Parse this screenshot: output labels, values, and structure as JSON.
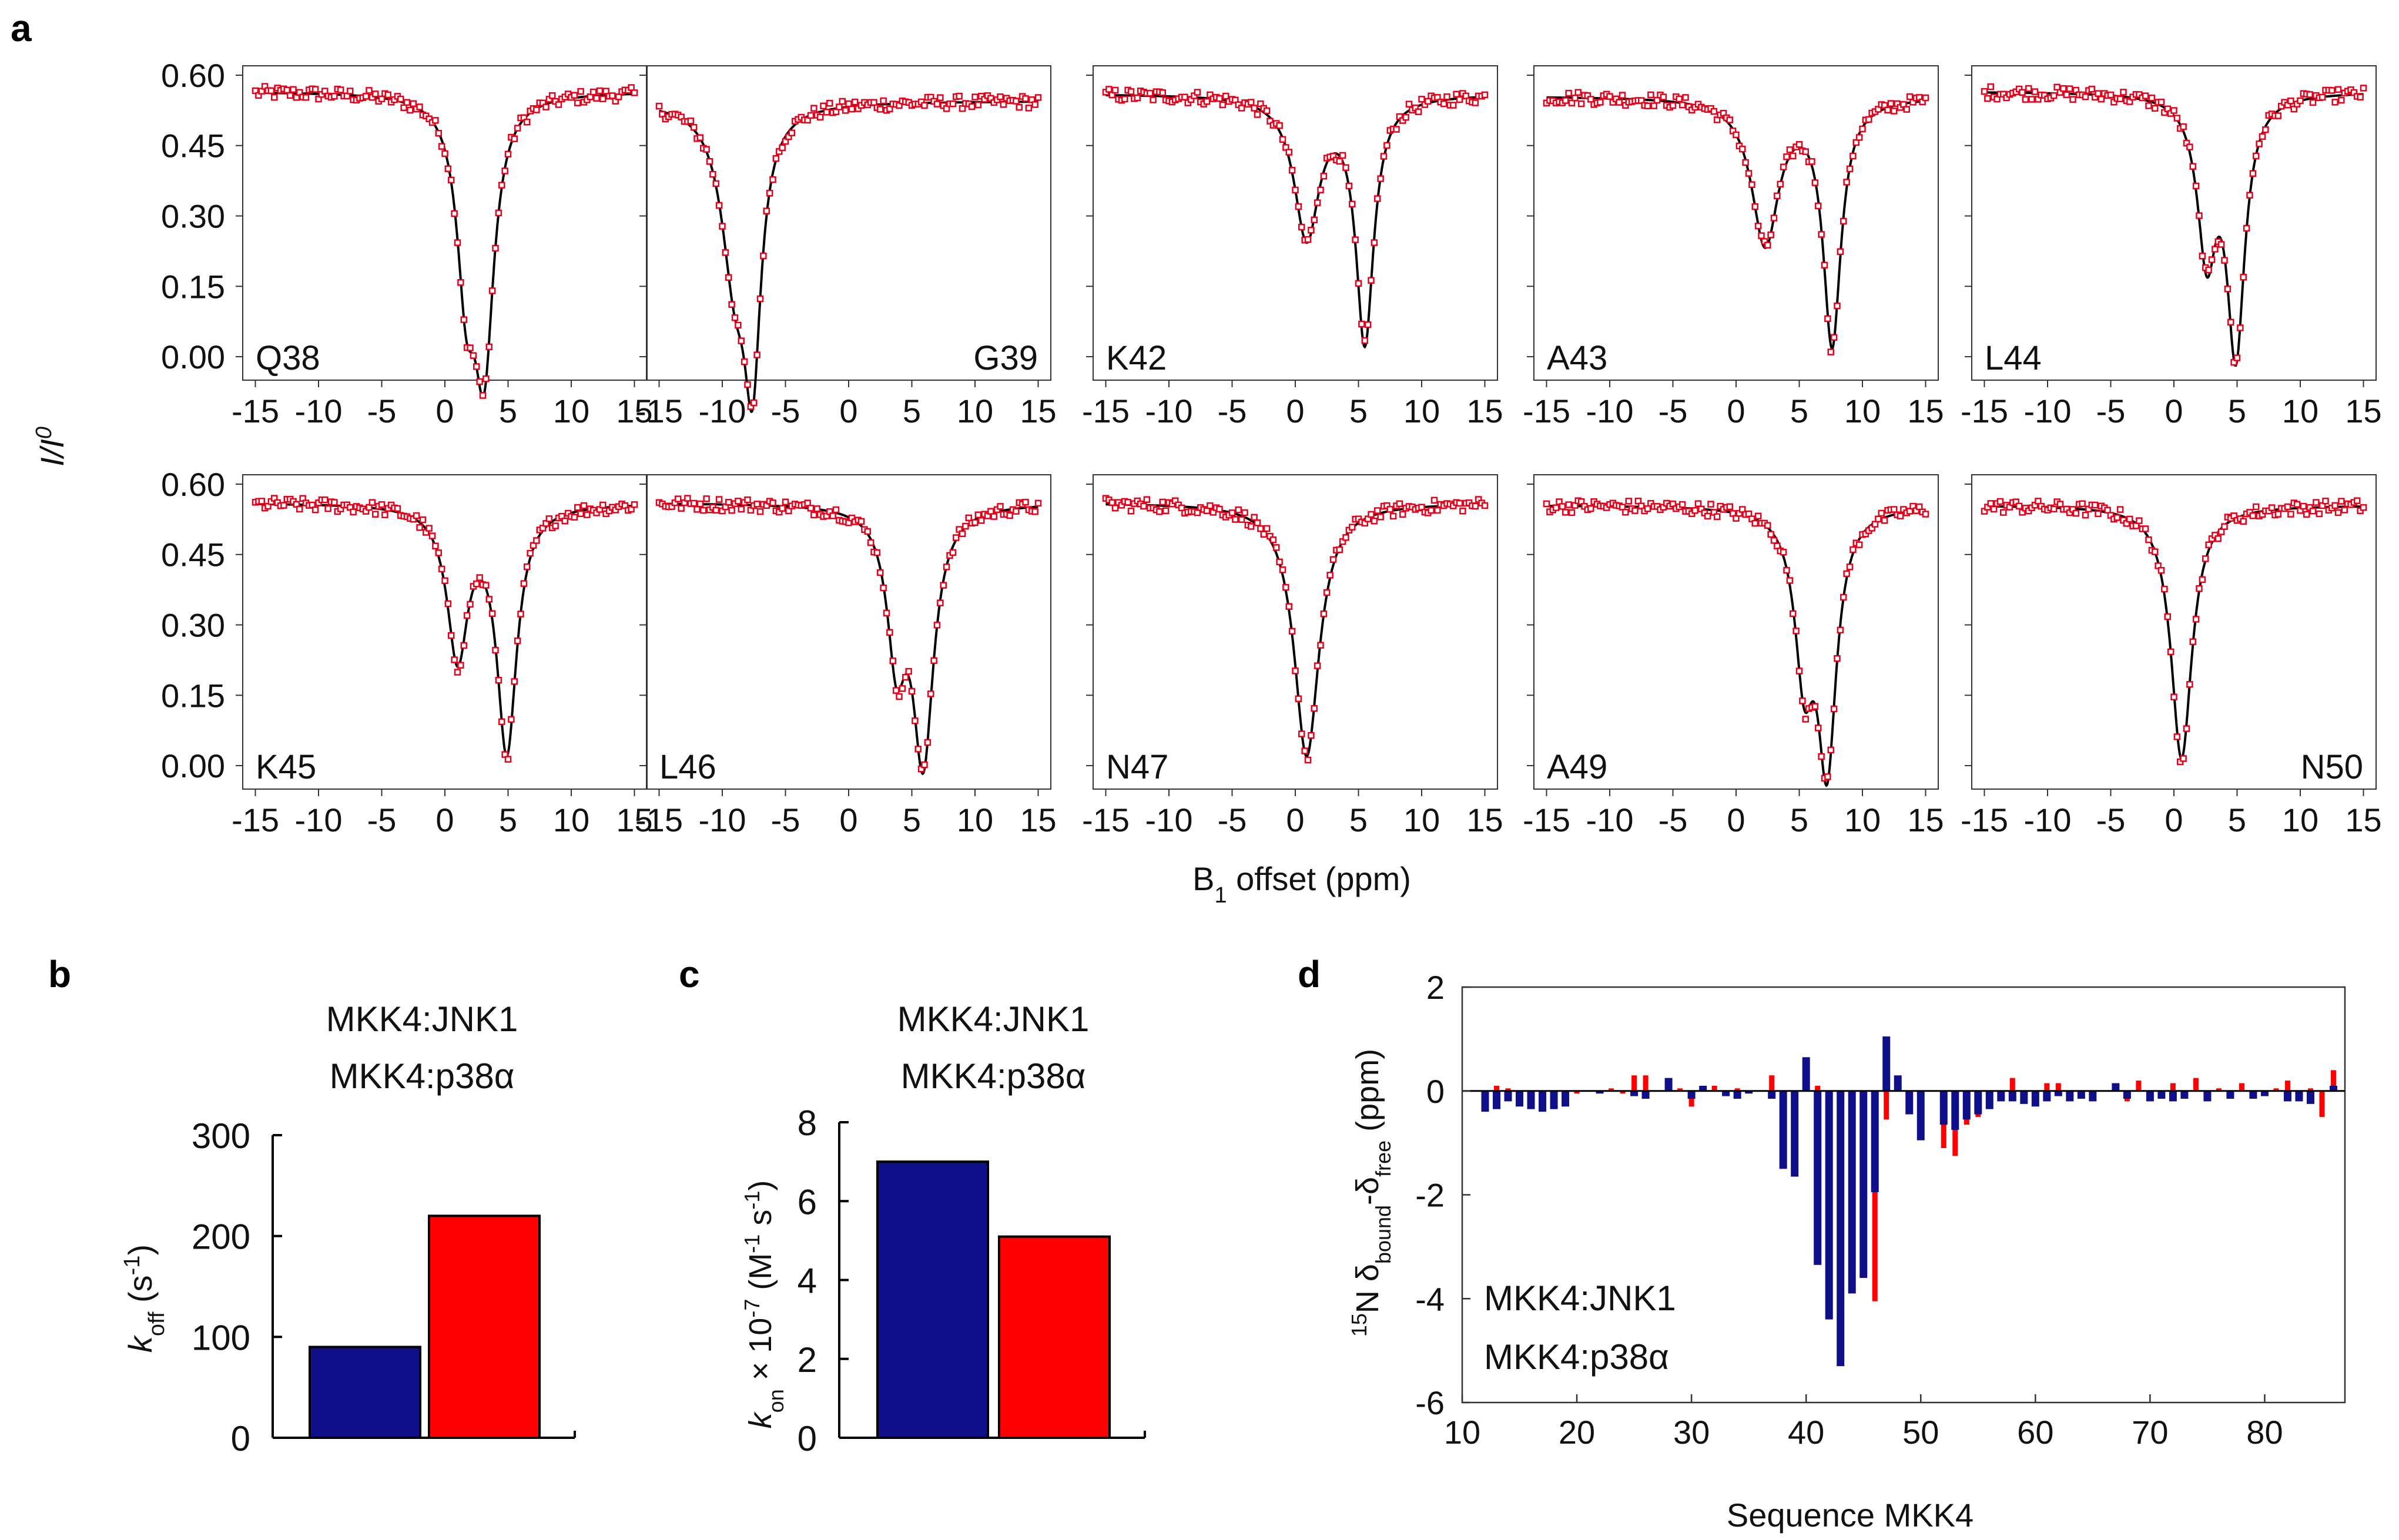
{
  "figure": {
    "panel_labels": [
      "a",
      "b",
      "c",
      "d"
    ]
  },
  "colors": {
    "jnk1": "#0f0f8a",
    "p38": "#ff0000",
    "points": "#e8001a",
    "fit": "#000000",
    "frame": "#333333"
  },
  "chart_data": [
    {
      "panel": "a",
      "type": "line",
      "shared_xlabel_main": "B",
      "shared_xlabel_sub": "1",
      "shared_xlabel_rest": " offset (ppm)",
      "shared_ylabel_main": "I/I",
      "shared_ylabel_sup": "0",
      "xlim": [
        -16,
        16
      ],
      "ylim": [
        -0.05,
        0.62
      ],
      "xticks": [
        -15,
        -10,
        -5,
        0,
        5,
        10,
        15
      ],
      "yticks": [
        0.0,
        0.15,
        0.3,
        0.45,
        0.6
      ],
      "ytick_labels": [
        "0.00",
        "0.15",
        "0.30",
        "0.45",
        "0.60"
      ],
      "subplots": [
        {
          "label": "Q38",
          "label_pos": "left",
          "baseline": 0.565,
          "dips": [
            {
              "c": 1.7,
              "d": 0.36,
              "w": 0.9
            },
            {
              "c": 3.1,
              "d": 0.54,
              "w": 0.95
            }
          ]
        },
        {
          "label": "G39",
          "label_pos": "right",
          "baseline": 0.545,
          "dips": [
            {
              "c": -9.0,
              "d": 0.34,
              "w": 1.3
            },
            {
              "c": -7.6,
              "d": 0.5,
              "w": 0.8
            }
          ]
        },
        {
          "label": "K42",
          "label_pos": "left",
          "baseline": 0.56,
          "dips": [
            {
              "c": 0.9,
              "d": 0.3,
              "w": 1.2
            },
            {
              "c": 5.5,
              "d": 0.52,
              "w": 0.85
            }
          ]
        },
        {
          "label": "A43",
          "label_pos": "left",
          "baseline": 0.555,
          "dips": [
            {
              "c": 2.3,
              "d": 0.31,
              "w": 1.3
            },
            {
              "c": 7.6,
              "d": 0.52,
              "w": 0.85
            }
          ]
        },
        {
          "label": "L44",
          "label_pos": "left",
          "baseline": 0.565,
          "dips": [
            {
              "c": 2.6,
              "d": 0.33,
              "w": 0.9
            },
            {
              "c": 4.9,
              "d": 0.54,
              "w": 0.85
            }
          ]
        },
        {
          "label": "K45",
          "label_pos": "left",
          "baseline": 0.56,
          "dips": [
            {
              "c": 1.0,
              "d": 0.32,
              "w": 1.0
            },
            {
              "c": 4.9,
              "d": 0.52,
              "w": 0.95
            }
          ]
        },
        {
          "label": "L46",
          "label_pos": "left",
          "baseline": 0.56,
          "dips": [
            {
              "c": 3.8,
              "d": 0.3,
              "w": 0.9
            },
            {
              "c": 5.9,
              "d": 0.53,
              "w": 1.0
            }
          ]
        },
        {
          "label": "N47",
          "label_pos": "left",
          "baseline": 0.56,
          "dips": [
            {
              "c": 0.9,
              "d": 0.54,
              "w": 1.2
            }
          ]
        },
        {
          "label": "A49",
          "label_pos": "left",
          "baseline": 0.555,
          "dips": [
            {
              "c": 5.4,
              "d": 0.33,
              "w": 0.9
            },
            {
              "c": 7.2,
              "d": 0.53,
              "w": 0.9
            }
          ]
        },
        {
          "label": "N50",
          "label_pos": "right",
          "baseline": 0.555,
          "dips": [
            {
              "c": 0.6,
              "d": 0.54,
              "w": 1.0
            }
          ]
        }
      ]
    },
    {
      "panel": "b",
      "type": "bar",
      "legend": [
        "MKK4:JNK1",
        "MKK4:p38α"
      ],
      "categories": [
        "MKK4:JNK1",
        "MKK4:p38α"
      ],
      "values": [
        90,
        220
      ],
      "ylim": [
        0,
        300
      ],
      "yticks": [
        0,
        100,
        200,
        300
      ],
      "ylabel_k": "k",
      "ylabel_sub": "off",
      "ylabel_rest": " (s",
      "ylabel_sup": "-1",
      "ylabel_end": ")"
    },
    {
      "panel": "c",
      "type": "bar",
      "legend": [
        "MKK4:JNK1",
        "MKK4:p38α"
      ],
      "categories": [
        "MKK4:JNK1",
        "MKK4:p38α"
      ],
      "values": [
        7.0,
        5.1
      ],
      "ylim": [
        0,
        8
      ],
      "yticks": [
        0,
        2,
        4,
        6,
        8
      ],
      "ylabel_k": "k",
      "ylabel_sub": "on",
      "ylabel_mid": " × 10",
      "ylabel_sup1": "-7",
      "ylabel_mid2": " (M",
      "ylabel_sup2": "-1",
      "ylabel_mid3": " s",
      "ylabel_sup3": "-1",
      "ylabel_end": ")"
    },
    {
      "panel": "d",
      "type": "bar",
      "xlabel": "Sequence MKK4",
      "ylabel_pre_sup": "15",
      "ylabel_n": "N δ",
      "ylabel_sub1": "bound",
      "ylabel_mid": "-δ",
      "ylabel_sub2": "free",
      "ylabel_end": " (ppm)",
      "xlim": [
        10,
        87
      ],
      "ylim": [
        -6,
        2
      ],
      "xticks": [
        10,
        20,
        30,
        40,
        50,
        60,
        70,
        80
      ],
      "yticks": [
        -6,
        -4,
        -2,
        0,
        2
      ],
      "legend": [
        "MKK4:JNK1",
        "MKK4:p38α"
      ],
      "series": [
        {
          "name": "MKK4:JNK1",
          "x": [
            12,
            13,
            14,
            15,
            16,
            17,
            18,
            19,
            22,
            25,
            26,
            28,
            30,
            31,
            33,
            34,
            35,
            37,
            38,
            39,
            40,
            41,
            42,
            43,
            44,
            45,
            46,
            47,
            48,
            49,
            50,
            52,
            53,
            54,
            55,
            56,
            57,
            58,
            59,
            60,
            61,
            62,
            63,
            64,
            65,
            67,
            68,
            70,
            71,
            72,
            73,
            75,
            77,
            79,
            80,
            82,
            83,
            84,
            86
          ],
          "values": [
            -0.4,
            -0.35,
            -0.2,
            -0.3,
            -0.35,
            -0.4,
            -0.35,
            -0.3,
            -0.05,
            -0.1,
            -0.15,
            0.25,
            -0.15,
            0.1,
            -0.1,
            -0.15,
            -0.05,
            -0.15,
            -1.5,
            -1.65,
            0.65,
            -3.35,
            -4.4,
            -5.3,
            -3.9,
            -3.6,
            -1.95,
            1.05,
            0.3,
            -0.45,
            -0.95,
            -0.65,
            -0.75,
            -0.55,
            -0.45,
            -0.35,
            -0.2,
            -0.2,
            -0.25,
            -0.3,
            -0.2,
            -0.1,
            -0.2,
            -0.15,
            -0.2,
            0.15,
            -0.15,
            -0.2,
            -0.15,
            -0.2,
            -0.15,
            -0.2,
            -0.15,
            -0.15,
            -0.1,
            -0.2,
            -0.2,
            -0.25,
            0.1
          ]
        },
        {
          "name": "MKK4:p38α",
          "x": [
            13,
            14,
            15,
            16,
            17,
            20,
            23,
            24,
            25,
            26,
            29,
            30,
            32,
            34,
            37,
            38,
            39,
            41,
            42,
            43,
            44,
            45,
            46,
            47,
            48,
            50,
            52,
            53,
            54,
            55,
            56,
            57,
            58,
            60,
            61,
            62,
            65,
            68,
            69,
            72,
            74,
            76,
            77,
            78,
            81,
            82,
            84,
            85,
            86
          ],
          "values": [
            0.1,
            0.05,
            -0.1,
            -0.1,
            -0.15,
            -0.05,
            0.05,
            -0.05,
            0.3,
            0.3,
            0.05,
            -0.3,
            0.1,
            0.05,
            0.3,
            -0.35,
            -0.3,
            0.1,
            -1.85,
            -1.8,
            -2.05,
            -3.6,
            -4.05,
            -0.55,
            0.25,
            -0.7,
            -1.1,
            -1.25,
            -0.65,
            -0.5,
            -0.3,
            -0.15,
            0.25,
            -0.15,
            0.15,
            0.15,
            -0.1,
            -0.2,
            0.2,
            0.15,
            0.25,
            0.05,
            -0.1,
            0.15,
            0.05,
            0.2,
            0.05,
            -0.5,
            0.4
          ]
        }
      ]
    }
  ]
}
